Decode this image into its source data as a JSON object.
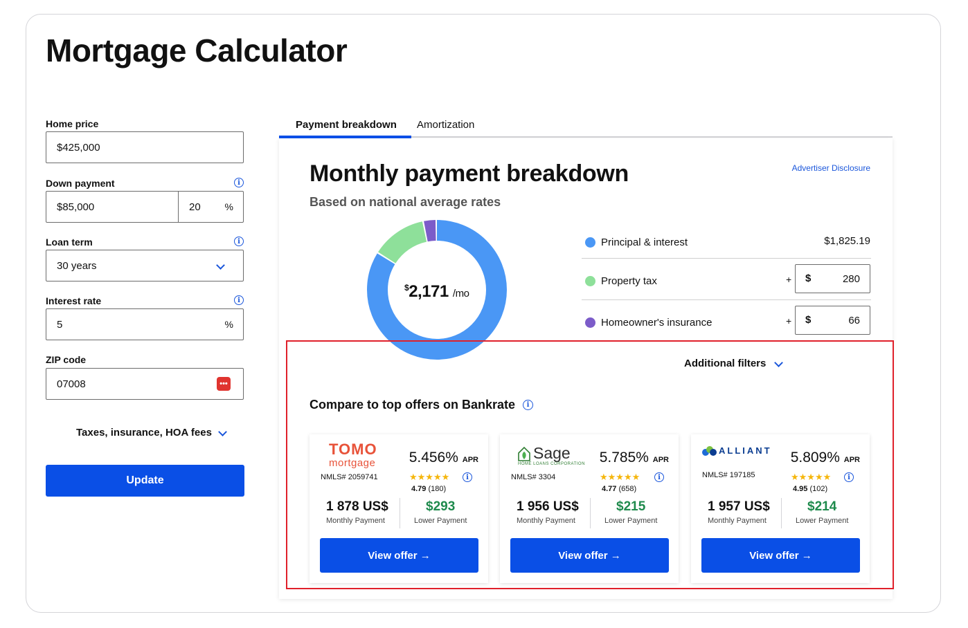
{
  "page": {
    "title": "Mortgage Calculator"
  },
  "form": {
    "home_price": {
      "label": "Home price",
      "value": "$425,000"
    },
    "down_payment": {
      "label": "Down payment",
      "value": "$85,000",
      "percent": "20",
      "percent_symbol": "%"
    },
    "loan_term": {
      "label": "Loan term",
      "value": "30 years"
    },
    "interest_rate": {
      "label": "Interest rate",
      "value": "5",
      "percent_symbol": "%"
    },
    "zip_code": {
      "label": "ZIP code",
      "value": "07008"
    },
    "taxes_toggle": "Taxes, insurance, HOA fees",
    "update_label": "Update"
  },
  "tabs": [
    {
      "label": "Payment breakdown",
      "active": true
    },
    {
      "label": "Amortization",
      "active": false
    }
  ],
  "breakdown": {
    "title": "Monthly payment breakdown",
    "subtitle": "Based on national average rates",
    "advertiser": "Advertiser Disclosure",
    "total_symbol": "$",
    "total": "2,171",
    "per": "/mo",
    "items": [
      {
        "label": "Principal & interest",
        "value": "$1,825.19",
        "amount": 1825.19,
        "color": "#4a97f5"
      },
      {
        "label": "Property tax",
        "plus": "+",
        "currency": "$",
        "value": "280",
        "amount": 280,
        "color": "#8ee09a"
      },
      {
        "label": "Homeowner's insurance",
        "plus": "+",
        "currency": "$",
        "value": "66",
        "amount": 66,
        "color": "#7c5cc9"
      }
    ]
  },
  "offers_section": {
    "filters_label": "Additional filters",
    "compare_title": "Compare to top offers on Bankrate",
    "offers": [
      {
        "lender": "Tomo mortgage",
        "logo_line1": "TOMO",
        "logo_line2": "mortgage",
        "nmls": "NMLS# 2059741",
        "rate": "5.456%",
        "apr": "APR",
        "stars": "★★★★★",
        "rating": "4.79",
        "reviews": "(180)",
        "monthly": "1 878 US$",
        "monthly_label": "Monthly Payment",
        "lower": "$293",
        "lower_label": "Lower Payment",
        "button": "View offer"
      },
      {
        "lender": "Sage Home Loans",
        "logo_main": "Sage",
        "logo_sub": "HOME LOANS CORPORATION",
        "nmls": "NMLS# 3304",
        "rate": "5.785%",
        "apr": "APR",
        "stars": "★★★★★",
        "rating": "4.77",
        "reviews": "(658)",
        "monthly": "1 956 US$",
        "monthly_label": "Monthly Payment",
        "lower": "$215",
        "lower_label": "Lower Payment",
        "button": "View offer"
      },
      {
        "lender": "Alliant",
        "logo_main": "ALLIANT",
        "nmls": "NMLS# 197185",
        "rate": "5.809%",
        "apr": "APR",
        "stars": "★★★★★",
        "rating": "4.95",
        "reviews": "(102)",
        "monthly": "1 957 US$",
        "monthly_label": "Monthly Payment",
        "lower": "$214",
        "lower_label": "Lower Payment",
        "button": "View offer"
      }
    ]
  },
  "colors": {
    "accent": "#0a4fe6",
    "positive": "#1e8a4c",
    "highlight_border": "#e0202a"
  }
}
